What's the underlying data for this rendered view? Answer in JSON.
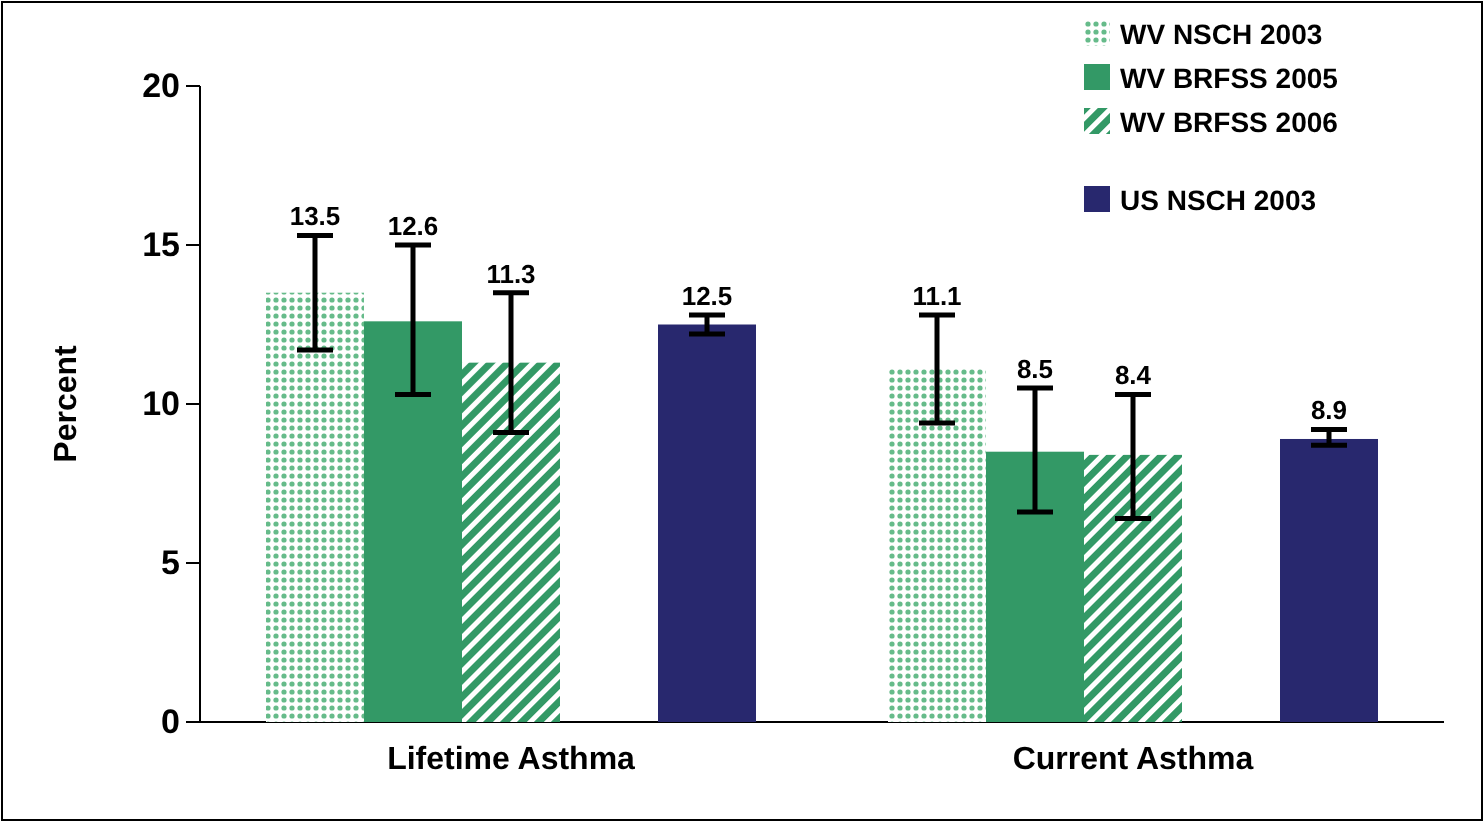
{
  "chart_data": {
    "type": "bar",
    "ylabel": "Percent",
    "categories": [
      "Lifetime Asthma",
      "Current Asthma"
    ],
    "series": [
      {
        "name": "WV NSCH 2003",
        "color": "#66bb8a",
        "values": [
          13.5,
          11.1
        ],
        "errors": [
          [
            11.7,
            15.3
          ],
          [
            9.4,
            12.8
          ]
        ]
      },
      {
        "name": "WV BRFSS 2005",
        "color": "#339966",
        "values": [
          12.6,
          8.5
        ],
        "errors": [
          [
            10.3,
            15.0
          ],
          [
            6.6,
            10.5
          ]
        ]
      },
      {
        "name": "WV BRFSS 2006",
        "color": "#339966",
        "values": [
          11.3,
          8.4
        ],
        "errors": [
          [
            9.1,
            13.5
          ],
          [
            6.4,
            10.3
          ]
        ]
      },
      {
        "name": "US NSCH 2003",
        "color": "#28286e",
        "values": [
          12.5,
          8.9
        ],
        "errors": [
          [
            12.2,
            12.8
          ],
          [
            8.7,
            9.2
          ]
        ]
      }
    ],
    "ylim": [
      0,
      20
    ],
    "yticks": [
      0,
      5,
      10,
      15,
      20
    ],
    "grid": false,
    "legend": "top right",
    "data_labels": true
  }
}
